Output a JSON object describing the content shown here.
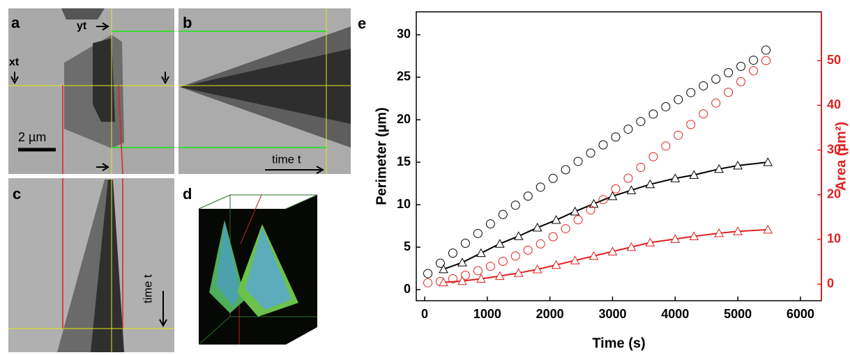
{
  "panels": {
    "a": {
      "label": "a",
      "xt": "xt",
      "yt": "yt",
      "scale": "2 µm"
    },
    "b": {
      "label": "b",
      "time": "time t"
    },
    "c": {
      "label": "c",
      "time": "time t"
    },
    "d": {
      "label": "d"
    }
  },
  "chart_data": {
    "type": "scatter",
    "label": "e",
    "xlabel": "Time (s)",
    "ylabel": "Perimeter (µm)",
    "y2label": "Area (µm²)",
    "xlim": [
      -134,
      6335
    ],
    "ylim": [
      -1.3,
      32.7
    ],
    "y2lim": [
      -3.7,
      60.9
    ],
    "xticks": [
      0,
      1000,
      2000,
      3000,
      4000,
      5000,
      6000
    ],
    "yticks": [
      0,
      5,
      10,
      15,
      20,
      25,
      30
    ],
    "y2ticks": [
      0,
      10,
      20,
      30,
      40,
      50
    ],
    "y2color": "#e02020",
    "series": [
      {
        "color": "#000000",
        "marker": "circle",
        "line": false,
        "axis": "y",
        "x": [
          50,
          250,
          450,
          650,
          850,
          1050,
          1250,
          1450,
          1650,
          1850,
          2050,
          2250,
          2450,
          2650,
          2850,
          3050,
          3250,
          3450,
          3650,
          3850,
          4050,
          4250,
          4450,
          4650,
          4850,
          5050,
          5250,
          5450
        ],
        "values": [
          1.9,
          3.11,
          4.3,
          5.46,
          6.61,
          7.74,
          8.85,
          9.94,
          11.01,
          12.06,
          13.1,
          14.11,
          15.1,
          16.08,
          17.04,
          17.97,
          18.89,
          19.79,
          20.67,
          21.53,
          22.37,
          23.19,
          23.99,
          24.78,
          25.54,
          26.28,
          27.01,
          28.2
        ]
      },
      {
        "color": "#000000",
        "marker": "triangle",
        "line": true,
        "axis": "y",
        "x": [
          300,
          600,
          900,
          1200,
          1500,
          1800,
          2100,
          2400,
          2700,
          3000,
          3300,
          3600,
          4000,
          4300,
          4700,
          5000,
          5480
        ],
        "values": [
          2.4,
          3.2,
          4.3,
          5.4,
          6.3,
          7.3,
          8.2,
          9.2,
          10.1,
          11.0,
          11.7,
          12.4,
          13.1,
          13.5,
          14.2,
          14.6,
          15.0
        ]
      },
      {
        "color": "#e02020",
        "marker": "circle",
        "line": false,
        "axis": "y2",
        "x": [
          50,
          250,
          450,
          650,
          850,
          1050,
          1250,
          1450,
          1650,
          1850,
          2050,
          2250,
          2450,
          2650,
          2850,
          3050,
          3250,
          3450,
          3650,
          3850,
          4050,
          4250,
          4450,
          4650,
          4850,
          5050,
          5250,
          5450
        ],
        "values": [
          0.3,
          0.6,
          1.2,
          2.0,
          3.0,
          4.0,
          5.1,
          6.3,
          7.6,
          9.0,
          10.6,
          12.4,
          14.4,
          16.6,
          18.9,
          21.3,
          23.7,
          26.1,
          28.5,
          30.9,
          33.3,
          35.7,
          38.1,
          40.5,
          42.9,
          45.3,
          47.7,
          50.0
        ]
      },
      {
        "color": "#e02020",
        "marker": "triangle",
        "line": true,
        "axis": "y2",
        "x": [
          300,
          600,
          900,
          1200,
          1500,
          1800,
          2100,
          2400,
          2700,
          3000,
          3300,
          3600,
          4000,
          4300,
          4700,
          5000,
          5480
        ],
        "values": [
          0.4,
          0.7,
          1.2,
          1.8,
          2.5,
          3.3,
          4.3,
          5.3,
          6.3,
          7.3,
          8.3,
          9.3,
          10.1,
          10.7,
          11.4,
          11.8,
          12.2
        ]
      }
    ]
  }
}
